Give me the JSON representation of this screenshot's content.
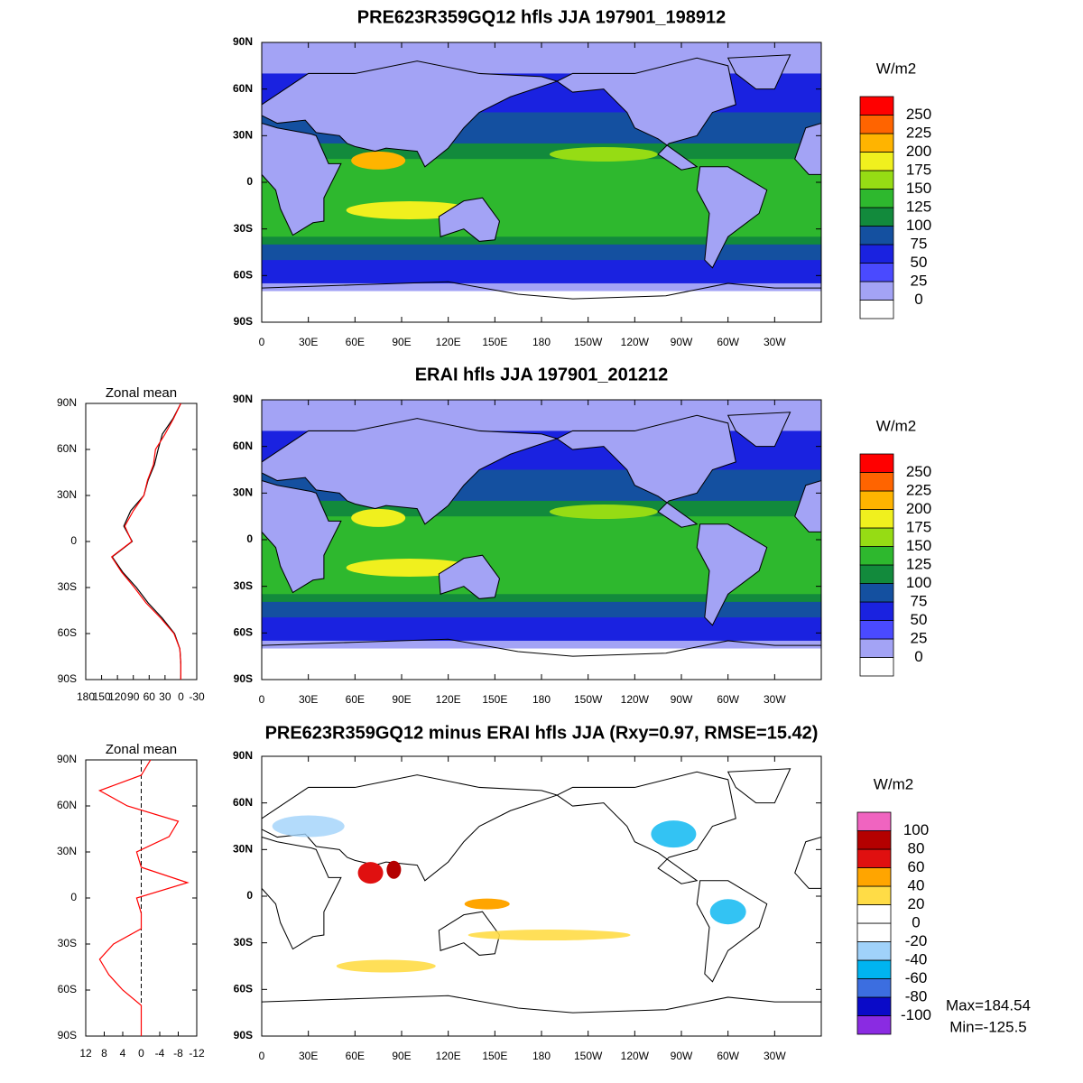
{
  "panels": [
    {
      "type": "map",
      "title": "PRE623R359GQ12 hfls JJA 197901_198912",
      "xlim": [
        0,
        360
      ],
      "ylim": [
        -90,
        90
      ],
      "xticks": [
        0,
        {
          "value": 30,
          "label": "30E"
        },
        {
          "value": 60,
          "label": "60E"
        },
        {
          "value": 90,
          "label": "90E"
        },
        {
          "value": 120,
          "label": "120E"
        },
        {
          "value": 150,
          "label": "150E"
        },
        180,
        {
          "value": 210,
          "label": "150W"
        },
        {
          "value": 240,
          "label": "120W"
        },
        {
          "value": 270,
          "label": "90W"
        },
        {
          "value": 300,
          "label": "60W"
        },
        {
          "value": 330,
          "label": "30W"
        }
      ],
      "yticks": [
        {
          "value": 90,
          "label": "90N"
        },
        {
          "value": 60,
          "label": "60N"
        },
        {
          "value": 30,
          "label": "30N"
        },
        0,
        {
          "value": -30,
          "label": "30S"
        },
        {
          "value": -60,
          "label": "60S"
        },
        {
          "value": -90,
          "label": "90S"
        }
      ],
      "colorbar": {
        "title": "W/m2",
        "levels": [
          0,
          25,
          50,
          75,
          100,
          125,
          150,
          175,
          200,
          225,
          250
        ],
        "colors": [
          "#ffffff",
          "#a3a3f5",
          "#4a4aff",
          "#1a22e0",
          "#1450a0",
          "#128a3c",
          "#2eb82e",
          "#96dc14",
          "#f0f01e",
          "#ffb400",
          "#ff6400",
          "#ff0000"
        ]
      }
    },
    {
      "type": "map",
      "title": "ERAI hfls JJA 197901_201212",
      "xlim": [
        0,
        360
      ],
      "ylim": [
        -90,
        90
      ],
      "xticks": [
        0,
        {
          "value": 30,
          "label": "30E"
        },
        {
          "value": 60,
          "label": "60E"
        },
        {
          "value": 90,
          "label": "90E"
        },
        {
          "value": 120,
          "label": "120E"
        },
        {
          "value": 150,
          "label": "150E"
        },
        180,
        {
          "value": 210,
          "label": "150W"
        },
        {
          "value": 240,
          "label": "120W"
        },
        {
          "value": 270,
          "label": "90W"
        },
        {
          "value": 300,
          "label": "60W"
        },
        {
          "value": 330,
          "label": "30W"
        }
      ],
      "yticks": [
        {
          "value": 90,
          "label": "90N"
        },
        {
          "value": 60,
          "label": "60N"
        },
        {
          "value": 30,
          "label": "30N"
        },
        0,
        {
          "value": -30,
          "label": "30S"
        },
        {
          "value": -60,
          "label": "60S"
        },
        {
          "value": -90,
          "label": "90S"
        }
      ],
      "colorbar": {
        "title": "W/m2",
        "levels": [
          0,
          25,
          50,
          75,
          100,
          125,
          150,
          175,
          200,
          225,
          250
        ],
        "colors": [
          "#ffffff",
          "#a3a3f5",
          "#4a4aff",
          "#1a22e0",
          "#1450a0",
          "#128a3c",
          "#2eb82e",
          "#96dc14",
          "#f0f01e",
          "#ffb400",
          "#ff6400",
          "#ff0000"
        ]
      }
    },
    {
      "type": "map",
      "title": "PRE623R359GQ12 minus ERAI hfls JJA (Rxy=0.97, RMSE=15.42)",
      "xlim": [
        0,
        360
      ],
      "ylim": [
        -90,
        90
      ],
      "xticks": [
        0,
        {
          "value": 30,
          "label": "30E"
        },
        {
          "value": 60,
          "label": "60E"
        },
        {
          "value": 90,
          "label": "90E"
        },
        {
          "value": 120,
          "label": "120E"
        },
        {
          "value": 150,
          "label": "150E"
        },
        180,
        {
          "value": 210,
          "label": "150W"
        },
        {
          "value": 240,
          "label": "120W"
        },
        {
          "value": 270,
          "label": "90W"
        },
        {
          "value": 300,
          "label": "60W"
        },
        {
          "value": 330,
          "label": "30W"
        }
      ],
      "yticks": [
        {
          "value": 90,
          "label": "90N"
        },
        {
          "value": 60,
          "label": "60N"
        },
        {
          "value": 30,
          "label": "30N"
        },
        0,
        {
          "value": -30,
          "label": "30S"
        },
        {
          "value": -60,
          "label": "60S"
        },
        {
          "value": -90,
          "label": "90S"
        }
      ],
      "colorbar": {
        "title": "W/m2",
        "levels": [
          -100,
          -80,
          -60,
          -40,
          -20,
          0,
          20,
          40,
          60,
          80,
          100
        ],
        "colors": [
          "#8a2be2",
          "#0a0ac8",
          "#3c6ee0",
          "#00b4f0",
          "#a0d2fa",
          "#ffffff",
          "#ffffff",
          "#ffdc46",
          "#ffa500",
          "#e01010",
          "#b40000",
          "#f064c0"
        ]
      },
      "annotations": [
        "Max=184.54",
        "Min=-125.5"
      ]
    }
  ],
  "zonal_means": [
    {
      "type": "line",
      "title": "Zonal mean",
      "xlim": [
        180,
        -30
      ],
      "ylim": [
        -90,
        90
      ],
      "xticks": [
        180,
        150,
        120,
        90,
        60,
        30,
        0,
        -30
      ],
      "yticks": [
        {
          "value": 90,
          "label": "90N"
        },
        {
          "value": 60,
          "label": "60N"
        },
        {
          "value": 30,
          "label": "30N"
        },
        0,
        {
          "value": -30,
          "label": "30S"
        },
        {
          "value": -60,
          "label": "60S"
        },
        {
          "value": -90,
          "label": "90S"
        }
      ],
      "lat": [
        90,
        80,
        70,
        60,
        50,
        40,
        30,
        20,
        10,
        0,
        -10,
        -20,
        -30,
        -40,
        -50,
        -60,
        -70,
        -80,
        -90
      ],
      "series": [
        {
          "color": "#000000",
          "values": [
            0,
            15,
            35,
            43,
            50,
            62,
            70,
            95,
            108,
            92,
            130,
            110,
            84,
            62,
            35,
            12,
            2,
            0,
            0
          ]
        },
        {
          "color": "#ff0000",
          "values": [
            0,
            14,
            30,
            48,
            52,
            63,
            70,
            90,
            106,
            93,
            131,
            112,
            88,
            66,
            38,
            13,
            2,
            0,
            0
          ]
        }
      ]
    },
    {
      "type": "line",
      "title": "Zonal mean",
      "xlim": [
        12,
        -12
      ],
      "ylim": [
        -90,
        90
      ],
      "xticks": [
        12,
        8,
        4,
        0,
        -4,
        -8,
        -12
      ],
      "yticks": [
        {
          "value": 90,
          "label": "90N"
        },
        {
          "value": 60,
          "label": "60N"
        },
        {
          "value": 30,
          "label": "30N"
        },
        0,
        {
          "value": -30,
          "label": "30S"
        },
        {
          "value": -60,
          "label": "60S"
        },
        {
          "value": -90,
          "label": "90S"
        }
      ],
      "lat": [
        90,
        80,
        70,
        60,
        50,
        40,
        30,
        20,
        10,
        0,
        -10,
        -20,
        -30,
        -40,
        -50,
        -60,
        -70,
        -80,
        -90
      ],
      "series": [
        {
          "color": "#ff0000",
          "values": [
            -2,
            0,
            9,
            3,
            -8,
            -6,
            1,
            0,
            -10,
            1,
            0,
            0,
            6,
            9,
            7,
            4,
            0,
            0,
            0
          ]
        }
      ]
    }
  ]
}
